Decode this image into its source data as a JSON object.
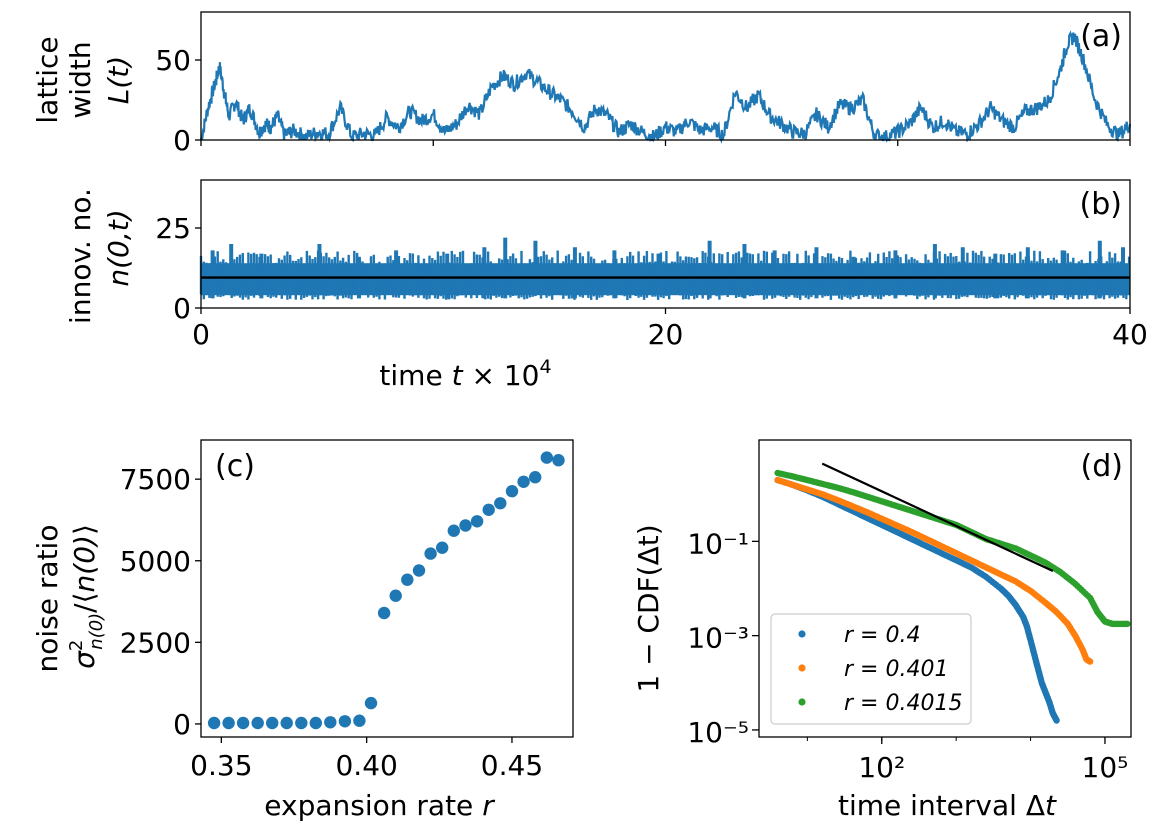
{
  "chart_data": [
    {
      "id": "a",
      "type": "line",
      "panel_label": "(a)",
      "ylabel_lines": [
        "lattice",
        "width"
      ],
      "ylabel_math": "L(t)",
      "xlim": [
        0,
        40
      ],
      "ylim": [
        0,
        80
      ],
      "yticks": [
        "0",
        "50"
      ],
      "ytick_values": [
        0,
        50
      ],
      "xtick_values": [
        0,
        10,
        20,
        30,
        40
      ],
      "color": "#1f77b4",
      "series": [
        {
          "x": [
            0,
            0.3,
            0.6,
            0.8,
            1.0,
            1.2,
            1.5,
            1.8,
            2.1,
            2.5,
            2.8,
            3.0,
            3.3,
            3.6,
            4.0,
            4.5,
            5.0,
            5.5,
            6.0,
            6.5,
            7.0,
            7.5,
            8.0,
            8.5,
            9.0,
            9.5,
            10.0,
            10.5,
            11.0,
            11.5,
            12.0,
            12.5,
            13.0,
            13.5,
            14.0,
            14.5,
            15.0,
            15.5,
            16.0,
            16.5,
            17.0,
            17.5,
            18.0,
            18.5,
            19.0,
            19.5,
            20.0,
            20.5,
            21.0,
            21.5,
            22.0,
            22.5,
            23.0,
            23.5,
            24.0,
            24.5,
            25.0,
            25.5,
            26.0,
            26.5,
            27.0,
            27.5,
            28.0,
            28.5,
            29.0,
            29.5,
            30.0,
            30.5,
            31.0,
            31.5,
            32.0,
            32.5,
            33.0,
            33.5,
            34.0,
            34.5,
            35.0,
            35.5,
            36.0,
            36.5,
            37.0,
            37.3,
            37.6,
            38.0,
            38.5,
            39.0,
            39.5,
            40.0
          ],
          "y": [
            0,
            20,
            35,
            46,
            30,
            15,
            24,
            12,
            20,
            5,
            10,
            8,
            15,
            3,
            6,
            2,
            5,
            4,
            20,
            2,
            4,
            3,
            14,
            8,
            18,
            12,
            16,
            5,
            10,
            22,
            16,
            33,
            40,
            35,
            42,
            36,
            30,
            25,
            18,
            8,
            20,
            15,
            5,
            10,
            5,
            2,
            8,
            5,
            12,
            6,
            8,
            3,
            30,
            20,
            28,
            15,
            10,
            5,
            4,
            16,
            8,
            22,
            20,
            25,
            3,
            2,
            5,
            10,
            20,
            8,
            12,
            5,
            4,
            10,
            20,
            12,
            8,
            18,
            20,
            25,
            44,
            60,
            65,
            50,
            25,
            10,
            3,
            10
          ]
        }
      ]
    },
    {
      "id": "b",
      "type": "line",
      "panel_label": "(b)",
      "ylabel_lines": [
        "innov. no."
      ],
      "ylabel_math": "n(0,t)",
      "xlabel": "time t × 10⁴",
      "xlim": [
        0,
        40
      ],
      "ylim": [
        0,
        40
      ],
      "xticks": [
        "0",
        "20",
        "40"
      ],
      "xtick_values": [
        0,
        20,
        40
      ],
      "yticks": [
        "0",
        "25"
      ],
      "ytick_values": [
        0,
        25
      ],
      "color": "#1f77b4",
      "mean_line": 9.5,
      "band": [
        4,
        14
      ],
      "spikes": [
        {
          "x": 0.5,
          "lo": 3,
          "hi": 18
        },
        {
          "x": 1.3,
          "lo": 4,
          "hi": 20
        },
        {
          "x": 2.6,
          "lo": 3,
          "hi": 17
        },
        {
          "x": 5.1,
          "lo": 4,
          "hi": 20
        },
        {
          "x": 6.8,
          "lo": 3,
          "hi": 16
        },
        {
          "x": 8.4,
          "lo": 4,
          "hi": 18
        },
        {
          "x": 10.6,
          "lo": 3,
          "hi": 17
        },
        {
          "x": 12.2,
          "lo": 3,
          "hi": 19
        },
        {
          "x": 13.1,
          "lo": 3,
          "hi": 22
        },
        {
          "x": 14.4,
          "lo": 4,
          "hi": 21
        },
        {
          "x": 16.1,
          "lo": 3,
          "hi": 19
        },
        {
          "x": 17.8,
          "lo": 3,
          "hi": 18
        },
        {
          "x": 19.7,
          "lo": 4,
          "hi": 17
        },
        {
          "x": 21.9,
          "lo": 3,
          "hi": 21
        },
        {
          "x": 23.4,
          "lo": 3,
          "hi": 20
        },
        {
          "x": 24.7,
          "lo": 4,
          "hi": 18
        },
        {
          "x": 26.5,
          "lo": 3,
          "hi": 19
        },
        {
          "x": 28.1,
          "lo": 4,
          "hi": 16
        },
        {
          "x": 29.9,
          "lo": 3,
          "hi": 18
        },
        {
          "x": 31.6,
          "lo": 3,
          "hi": 20
        },
        {
          "x": 32.8,
          "lo": 4,
          "hi": 19
        },
        {
          "x": 34.2,
          "lo": 3,
          "hi": 17
        },
        {
          "x": 35.6,
          "lo": 3,
          "hi": 19
        },
        {
          "x": 37.1,
          "lo": 4,
          "hi": 18
        },
        {
          "x": 38.7,
          "lo": 3,
          "hi": 21
        },
        {
          "x": 39.7,
          "lo": 4,
          "hi": 19
        }
      ]
    },
    {
      "id": "c",
      "type": "scatter",
      "panel_label": "(c)",
      "ylabel_lines": [
        "noise ratio"
      ],
      "ylabel_math": "σ²n(0) / ⟨n(0)⟩",
      "xlabel": "expansion rate r",
      "xlim": [
        0.343,
        0.471
      ],
      "ylim": [
        -400,
        8700
      ],
      "xticks": [
        "0.35",
        "0.40",
        "0.45"
      ],
      "xtick_values": [
        0.35,
        0.4,
        0.45
      ],
      "yticks": [
        "0",
        "2500",
        "5000",
        "7500"
      ],
      "ytick_values": [
        0,
        2500,
        5000,
        7500
      ],
      "color": "#1f77b4",
      "series": [
        {
          "x": [
            0.3475,
            0.3525,
            0.3575,
            0.3625,
            0.3675,
            0.3725,
            0.3775,
            0.3825,
            0.3875,
            0.3925,
            0.3975,
            0.4015,
            0.406,
            0.41,
            0.414,
            0.418,
            0.422,
            0.426,
            0.43,
            0.434,
            0.438,
            0.442,
            0.446,
            0.45,
            0.454,
            0.458,
            0.462,
            0.466
          ],
          "y": [
            30,
            30,
            30,
            30,
            30,
            30,
            30,
            30,
            50,
            80,
            100,
            640,
            3400,
            3930,
            4420,
            4700,
            5220,
            5400,
            5920,
            6080,
            6210,
            6560,
            6760,
            7130,
            7420,
            7560,
            8160,
            8080
          ]
        }
      ]
    },
    {
      "id": "d",
      "type": "scatter",
      "panel_label": "(d)",
      "ylabel_lines": [
        "1 − CDF(Δt)"
      ],
      "xlabel": "time interval Δt",
      "xscale": "log",
      "yscale": "log",
      "xlim_log10": [
        0.35,
        5.35
      ],
      "ylim_log10": [
        -5.15,
        1.15
      ],
      "xticks": [
        "10²",
        "10⁵"
      ],
      "xtick_values_log10": [
        2,
        5
      ],
      "yticks": [
        "10⁻⁵",
        "10⁻³",
        "10⁻¹"
      ],
      "ytick_values_log10": [
        -5,
        -3,
        -1
      ],
      "legend_location": "lower left",
      "reference_line": {
        "x_log10": [
          1.2,
          4.3
        ],
        "y_log10": [
          0.65,
          -1.63
        ],
        "color": "#000000"
      },
      "series": [
        {
          "name": "r = 0.4",
          "color": "#1f77b4",
          "x_log10": [
            0.6,
            0.8,
            1.0,
            1.2,
            1.4,
            1.6,
            1.8,
            2.0,
            2.2,
            2.4,
            2.6,
            2.8,
            3.0,
            3.2,
            3.4,
            3.6,
            3.7,
            3.8,
            3.9,
            3.95,
            4.0,
            4.05,
            4.1,
            4.15,
            4.2,
            4.25,
            4.3,
            4.35
          ],
          "y_log10": [
            0.3,
            0.2,
            0.08,
            -0.05,
            -0.2,
            -0.35,
            -0.5,
            -0.65,
            -0.8,
            -0.95,
            -1.1,
            -1.25,
            -1.4,
            -1.55,
            -1.75,
            -2.0,
            -2.15,
            -2.35,
            -2.6,
            -2.8,
            -3.1,
            -3.4,
            -3.7,
            -4.0,
            -4.2,
            -4.4,
            -4.65,
            -4.8
          ]
        },
        {
          "name": "r = 0.401",
          "color": "#ff7f0e",
          "x_log10": [
            0.6,
            0.8,
            1.0,
            1.2,
            1.4,
            1.6,
            1.8,
            2.0,
            2.2,
            2.4,
            2.6,
            2.8,
            3.0,
            3.2,
            3.4,
            3.6,
            3.8,
            4.0,
            4.2,
            4.35,
            4.5,
            4.6,
            4.7,
            4.75,
            4.8
          ],
          "y_log10": [
            0.3,
            0.2,
            0.1,
            0.0,
            -0.12,
            -0.25,
            -0.38,
            -0.52,
            -0.66,
            -0.8,
            -0.95,
            -1.1,
            -1.25,
            -1.4,
            -1.55,
            -1.7,
            -1.85,
            -2.05,
            -2.3,
            -2.5,
            -2.75,
            -3.0,
            -3.3,
            -3.5,
            -3.55
          ]
        },
        {
          "name": "r = 0.4015",
          "color": "#2ca02c",
          "x_log10": [
            0.6,
            0.8,
            1.0,
            1.2,
            1.4,
            1.6,
            1.8,
            2.0,
            2.2,
            2.4,
            2.6,
            2.8,
            3.0,
            3.2,
            3.4,
            3.6,
            3.8,
            4.0,
            4.2,
            4.4,
            4.6,
            4.8,
            4.9,
            5.0,
            5.1,
            5.2,
            5.3
          ],
          "y_log10": [
            0.45,
            0.38,
            0.3,
            0.22,
            0.14,
            0.05,
            -0.05,
            -0.15,
            -0.25,
            -0.35,
            -0.45,
            -0.55,
            -0.65,
            -0.8,
            -0.95,
            -1.05,
            -1.15,
            -1.3,
            -1.45,
            -1.65,
            -1.9,
            -2.2,
            -2.5,
            -2.7,
            -2.75,
            -2.75,
            -2.75
          ]
        }
      ]
    }
  ]
}
